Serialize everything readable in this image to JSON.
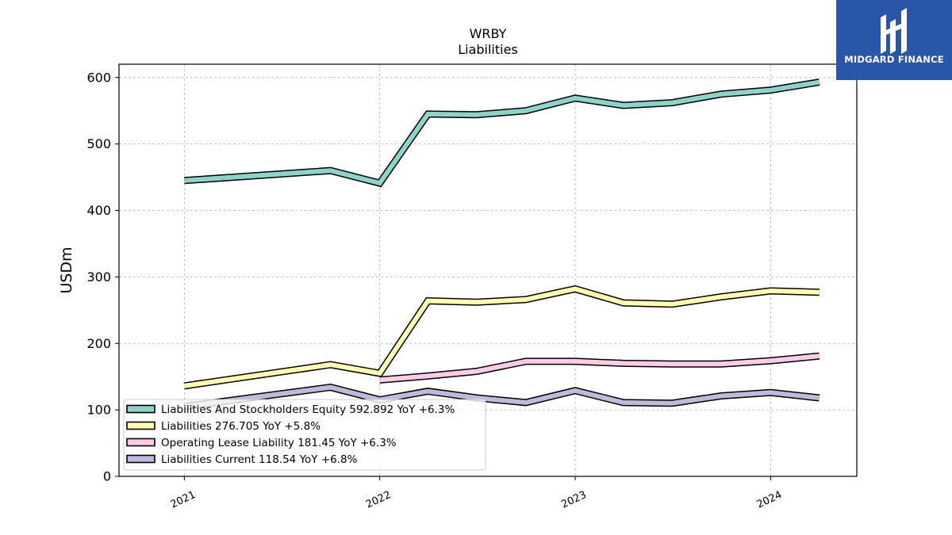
{
  "chart_data": {
    "type": "line",
    "title": "WRBY",
    "subtitle": "Liabilities",
    "ylabel": "USDm",
    "xlabel": "",
    "ylim": [
      0,
      620
    ],
    "yticks": [
      0,
      100,
      200,
      300,
      400,
      500,
      600
    ],
    "xticks": [
      "2021",
      "2022",
      "2023",
      "2024"
    ],
    "grid": true,
    "legend_position": "lower-left",
    "series": [
      {
        "name": "Liabilities And Stockholders Equity",
        "legend_label": "Liabilities And Stockholders Equity  592.892 YoY +6.3%",
        "color": "#8dd3c7",
        "points": [
          [
            "2021-01-01",
            445
          ],
          [
            "2021-10-01",
            460
          ],
          [
            "2022-01-01",
            441
          ],
          [
            "2022-04-01",
            545
          ],
          [
            "2022-07-01",
            544
          ],
          [
            "2022-10-01",
            550
          ],
          [
            "2023-01-01",
            569
          ],
          [
            "2023-04-01",
            558
          ],
          [
            "2023-07-01",
            562
          ],
          [
            "2023-10-01",
            575
          ],
          [
            "2024-01-01",
            581
          ],
          [
            "2024-04-01",
            593
          ]
        ]
      },
      {
        "name": "Liabilities",
        "legend_label": "Liabilities  276.705 YoY +5.8%",
        "color": "#ffffb3",
        "points": [
          [
            "2021-01-01",
            136
          ],
          [
            "2021-10-01",
            168
          ],
          [
            "2022-01-01",
            155
          ],
          [
            "2022-04-01",
            264
          ],
          [
            "2022-07-01",
            262
          ],
          [
            "2022-10-01",
            266
          ],
          [
            "2023-01-01",
            282
          ],
          [
            "2023-04-01",
            261
          ],
          [
            "2023-07-01",
            259
          ],
          [
            "2023-10-01",
            270
          ],
          [
            "2024-01-01",
            279
          ],
          [
            "2024-04-01",
            277
          ]
        ]
      },
      {
        "name": "Operating Lease Liability",
        "legend_label": "Operating Lease Liability  181.45 YoY +6.3%",
        "color": "#fccde5",
        "points": [
          [
            "2022-01-01",
            145
          ],
          [
            "2022-04-01",
            151
          ],
          [
            "2022-07-01",
            158
          ],
          [
            "2022-10-01",
            173
          ],
          [
            "2023-01-01",
            173
          ],
          [
            "2023-04-01",
            170
          ],
          [
            "2023-07-01",
            169
          ],
          [
            "2023-10-01",
            169
          ],
          [
            "2024-01-01",
            174
          ],
          [
            "2024-04-01",
            181
          ]
        ]
      },
      {
        "name": "Liabilities Current",
        "legend_label": "Liabilities Current  118.54 YoY +6.8%",
        "color": "#bebada",
        "points": [
          [
            "2021-01-01",
            105
          ],
          [
            "2021-10-01",
            134
          ],
          [
            "2022-01-01",
            115
          ],
          [
            "2022-04-01",
            128
          ],
          [
            "2022-07-01",
            118
          ],
          [
            "2022-10-01",
            111
          ],
          [
            "2023-01-01",
            129
          ],
          [
            "2023-04-01",
            111
          ],
          [
            "2023-07-01",
            110
          ],
          [
            "2023-10-01",
            121
          ],
          [
            "2024-01-01",
            126
          ],
          [
            "2024-04-01",
            118
          ]
        ]
      }
    ]
  },
  "logo": {
    "text": "MIDGARD FINANCE",
    "color": "#2a56a8"
  }
}
